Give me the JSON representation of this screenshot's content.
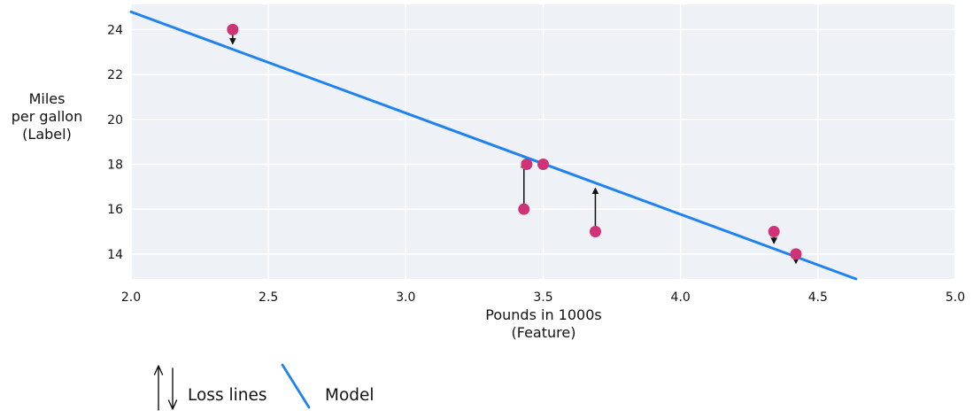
{
  "figure": {
    "background": "#ffffff",
    "plot_bg": "#eef1f6",
    "grid_color": "#ffffff",
    "text_color": "#111111",
    "arrow_color": "#111111"
  },
  "chart_data": {
    "type": "scatter",
    "xlabel": "Pounds in 1000s",
    "xlabel_sub": "(Feature)",
    "ylabel_lines": [
      "Miles",
      "per gallon",
      "(Label)"
    ],
    "xlim": [
      2.0,
      5.0
    ],
    "ylim": [
      12.89,
      25.12
    ],
    "grid": true,
    "xticks": [
      {
        "value": 2.0,
        "label": "2.0"
      },
      {
        "value": 2.5,
        "label": "2.5"
      },
      {
        "value": 3.0,
        "label": "3.0"
      },
      {
        "value": 3.5,
        "label": "3.5"
      },
      {
        "value": 4.0,
        "label": "4.0"
      },
      {
        "value": 4.5,
        "label": "4.5"
      },
      {
        "value": 5.0,
        "label": "5.0"
      }
    ],
    "yticks": [
      {
        "value": 24,
        "label": "24"
      },
      {
        "value": 22,
        "label": "22"
      },
      {
        "value": 20,
        "label": "20"
      },
      {
        "value": 18,
        "label": "18"
      },
      {
        "value": 16,
        "label": "16"
      },
      {
        "value": 14,
        "label": "14"
      }
    ],
    "points": [
      {
        "x": 3.5,
        "y": 18,
        "loss_line": false
      },
      {
        "x": 3.69,
        "y": 15,
        "loss_line": true
      },
      {
        "x": 3.44,
        "y": 18,
        "loss_line": false
      },
      {
        "x": 3.43,
        "y": 16,
        "loss_line": true
      },
      {
        "x": 4.34,
        "y": 15,
        "loss_line": true
      },
      {
        "x": 4.42,
        "y": 14,
        "loss_line": true
      },
      {
        "x": 2.37,
        "y": 24,
        "loss_line": true
      }
    ],
    "model_line": {
      "slope": -4.51,
      "intercept": 33.81
    },
    "point_color": "#cf3277",
    "line_color": "#1e82f0",
    "legend": [
      {
        "symbol": "loss-arrows",
        "label": "Loss lines"
      },
      {
        "symbol": "model-line",
        "label": "Model"
      }
    ]
  }
}
